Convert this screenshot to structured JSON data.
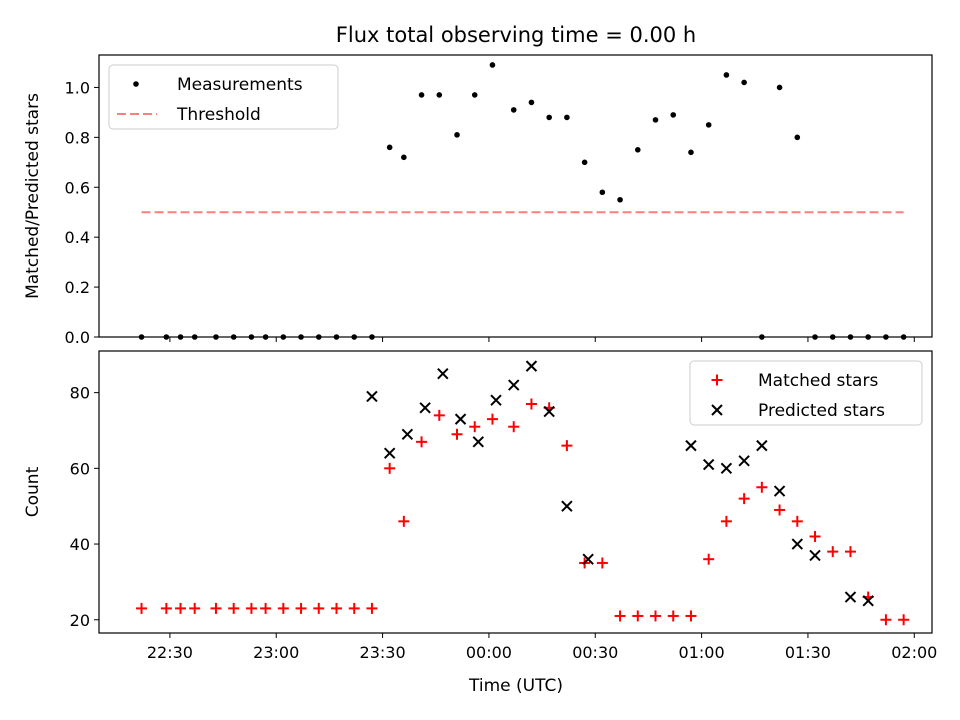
{
  "chart_data": {
    "title": "Flux total observing time = 0.00 h",
    "xlabel": "Time (UTC)",
    "x_unit": "minutes relative to 00:00 UTC",
    "xlim": [
      -110,
      125
    ],
    "x_ticks": [
      {
        "value": -90,
        "label": "22:30"
      },
      {
        "value": -60,
        "label": "23:00"
      },
      {
        "value": -30,
        "label": "23:30"
      },
      {
        "value": 0,
        "label": "00:00"
      },
      {
        "value": 30,
        "label": "00:30"
      },
      {
        "value": 60,
        "label": "01:00"
      },
      {
        "value": 90,
        "label": "01:30"
      },
      {
        "value": 120,
        "label": "02:00"
      }
    ],
    "panels": [
      {
        "type": "scatter",
        "ylabel": "Matched/Predicted stars",
        "ylim": [
          0,
          1.13
        ],
        "y_ticks": [
          "0.0",
          "0.2",
          "0.4",
          "0.6",
          "0.8",
          "1.0"
        ],
        "legend_position": "top-left",
        "series": [
          {
            "name": "Measurements",
            "marker": "dot",
            "color": "#000000",
            "x": [
              -98,
              -91,
              -87,
              -83,
              -77,
              -72,
              -67,
              -63,
              -58,
              -53,
              -48,
              -43,
              -38,
              -33,
              -28,
              -24,
              -19,
              -14,
              -9,
              -4,
              1,
              7,
              12,
              17,
              22,
              27,
              32,
              37,
              42,
              47,
              52,
              57,
              62,
              67,
              72,
              77,
              82,
              87,
              92,
              97,
              102,
              107,
              112,
              117
            ],
            "y": [
              0,
              0,
              0,
              0,
              0,
              0,
              0,
              0,
              0,
              0,
              0,
              0,
              0,
              0,
              0.76,
              0.72,
              0.97,
              0.97,
              0.81,
              0.97,
              1.09,
              0.91,
              0.94,
              0.88,
              0.88,
              0.7,
              0.58,
              0.55,
              0.75,
              0.87,
              0.89,
              0.74,
              0.85,
              1.05,
              1.02,
              0,
              1.0,
              0.8,
              0,
              0,
              0,
              0,
              0,
              0
            ],
            "_note_order": "values listed in x order"
          },
          {
            "name": "Threshold",
            "style": "dashed-line",
            "color": "#ff7f7f",
            "x": [
              -98,
              117
            ],
            "y": [
              0.5,
              0.5
            ]
          }
        ]
      },
      {
        "type": "scatter",
        "ylabel": "Count",
        "ylim": [
          16.5,
          91
        ],
        "y_ticks": [
          "20",
          "40",
          "60",
          "80"
        ],
        "legend_position": "top-right",
        "series": [
          {
            "name": "Matched stars",
            "marker": "plus",
            "color": "#ff0000",
            "x": [
              -98,
              -91,
              -87,
              -83,
              -77,
              -72,
              -67,
              -63,
              -58,
              -53,
              -48,
              -43,
              -38,
              -33,
              -28,
              -24,
              -19,
              -14,
              -9,
              -4,
              1,
              7,
              12,
              17,
              22,
              27,
              32,
              37,
              42,
              47,
              52,
              57,
              62,
              67,
              72,
              77,
              82,
              87,
              92,
              97,
              102,
              107,
              112,
              117
            ],
            "y": [
              23,
              23,
              23,
              23,
              23,
              23,
              23,
              23,
              23,
              23,
              23,
              23,
              23,
              23,
              60,
              46,
              67,
              74,
              69,
              71,
              73,
              71,
              77,
              76,
              66,
              35,
              35,
              21,
              21,
              21,
              21,
              21,
              36,
              46,
              52,
              55,
              49,
              46,
              42,
              38,
              38,
              26,
              20,
              20
            ]
          },
          {
            "name": "Predicted stars",
            "marker": "x",
            "color": "#000000",
            "x": [
              -33,
              -28,
              -23,
              -18,
              -13,
              -8,
              -3,
              2,
              7,
              12,
              17,
              22,
              28,
              57,
              62,
              67,
              72,
              77,
              82,
              87,
              92,
              102,
              107
            ],
            "y": [
              79,
              64,
              69,
              76,
              85,
              73,
              67,
              78,
              82,
              87,
              75,
              50,
              36,
              66,
              61,
              60,
              62,
              66,
              54,
              40,
              37,
              26,
              25
            ]
          }
        ]
      }
    ]
  }
}
